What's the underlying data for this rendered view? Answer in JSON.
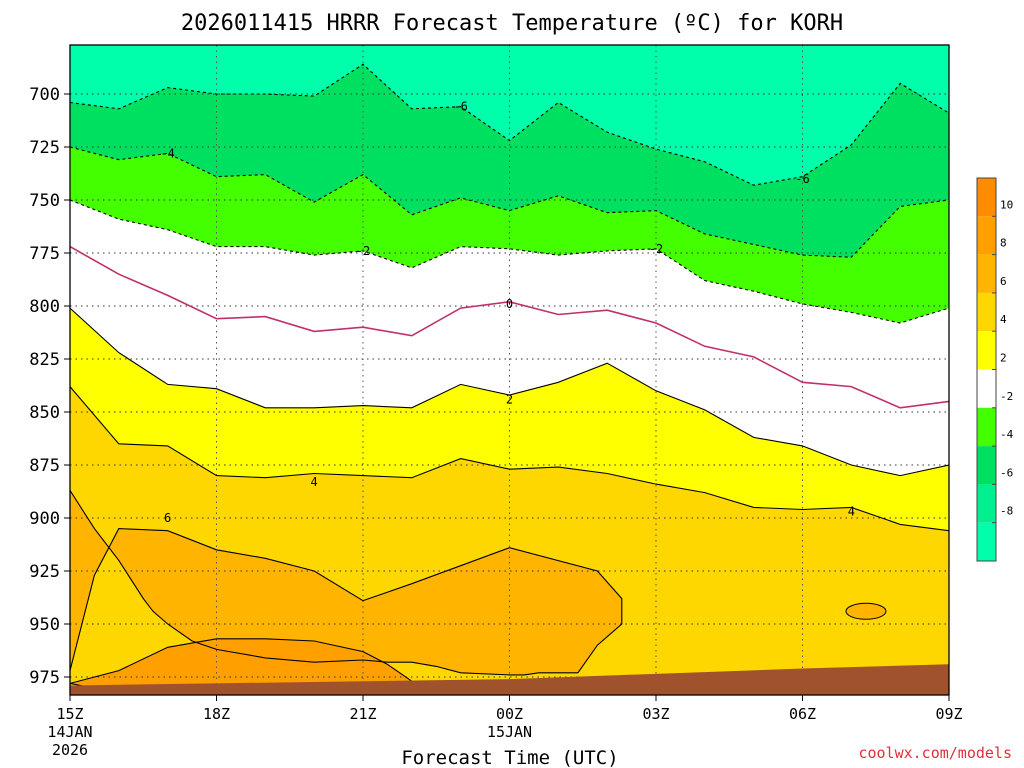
{
  "chart_data": {
    "type": "heatmap",
    "title": "2026011415 HRRR Forecast Temperature (ºC) for KORH",
    "xlabel": "Forecast Time (UTC)",
    "ylabel": "",
    "credit": "coolwx.com/models",
    "y_axis": {
      "ticks": [
        "700",
        "725",
        "750",
        "775",
        "800",
        "825",
        "850",
        "875",
        "900",
        "925",
        "950",
        "975"
      ],
      "values": [
        700,
        725,
        750,
        775,
        800,
        825,
        850,
        875,
        900,
        925,
        950,
        975
      ],
      "range": [
        676,
        985
      ],
      "inverted": true
    },
    "x_axis": {
      "ticks": [
        {
          "hour": 0,
          "label": "15Z",
          "sub1": "14JAN",
          "sub2": "2026"
        },
        {
          "hour": 3,
          "label": "18Z",
          "sub1": "",
          "sub2": ""
        },
        {
          "hour": 6,
          "label": "21Z",
          "sub1": "",
          "sub2": ""
        },
        {
          "hour": 9,
          "label": "00Z",
          "sub1": "15JAN",
          "sub2": ""
        },
        {
          "hour": 12,
          "label": "03Z",
          "sub1": "",
          "sub2": ""
        },
        {
          "hour": 15,
          "label": "06Z",
          "sub1": "",
          "sub2": ""
        },
        {
          "hour": 18,
          "label": "09Z",
          "sub1": "",
          "sub2": ""
        }
      ],
      "range": [
        0,
        18
      ]
    },
    "grid": true,
    "legend": {
      "placement": "right",
      "levels": [
        {
          "label": "10",
          "color": "#ff8c00"
        },
        {
          "label": "8",
          "color": "#ffa000"
        },
        {
          "label": "6",
          "color": "#ffb400"
        },
        {
          "label": "4",
          "color": "#ffd700"
        },
        {
          "label": "2",
          "color": "#ffff00"
        },
        {
          "label": "-2",
          "color": "#ffffff"
        },
        {
          "label": "-4",
          "color": "#44ff00"
        },
        {
          "label": "-6",
          "color": "#00e060"
        },
        {
          "label": "-8",
          "color": "#00f090"
        },
        {
          "label": "",
          "color": "#00ffaa"
        }
      ],
      "label_values": [
        "10",
        "8",
        "6",
        "4",
        "2",
        "-2",
        "-4",
        "-6",
        "-8"
      ]
    },
    "contours": [
      {
        "label": "-6",
        "hours": [
          0,
          1,
          2,
          3,
          4,
          5,
          6,
          7,
          8,
          9,
          10,
          11,
          12,
          13,
          14,
          15,
          16,
          17,
          18
        ],
        "pressure": [
          704,
          707,
          697,
          700,
          700,
          701,
          686,
          707,
          706,
          722,
          704,
          718,
          726,
          732,
          743,
          739,
          724,
          695,
          709
        ]
      },
      {
        "label": "-4",
        "hours": [
          0,
          1,
          2,
          3,
          4,
          5,
          6,
          7,
          8,
          9,
          10,
          11,
          12,
          13,
          14,
          15,
          16,
          17,
          18
        ],
        "pressure": [
          725,
          731,
          728,
          739,
          738,
          751,
          738,
          757,
          749,
          755,
          748,
          756,
          755,
          766,
          771,
          776,
          777,
          753,
          750
        ]
      },
      {
        "label": "-2",
        "hours": [
          0,
          1,
          2,
          3,
          4,
          5,
          6,
          7,
          8,
          9,
          10,
          11,
          12,
          13,
          14,
          15,
          16,
          17,
          18
        ],
        "pressure": [
          750,
          759,
          764,
          772,
          772,
          776,
          774,
          782,
          772,
          773,
          776,
          774,
          773,
          788,
          793,
          799,
          803,
          808,
          801
        ]
      },
      {
        "label": "0",
        "hours": [
          0,
          1,
          2,
          3,
          4,
          5,
          6,
          7,
          8,
          9,
          10,
          11,
          12,
          13,
          14,
          15,
          16,
          17,
          18
        ],
        "pressure": [
          772,
          785,
          795,
          806,
          805,
          812,
          810,
          814,
          801,
          798,
          804,
          802,
          808,
          819,
          824,
          836,
          838,
          848,
          845
        ]
      },
      {
        "label": "2",
        "hours": [
          0,
          1,
          2,
          3,
          4,
          5,
          6,
          7,
          8,
          9,
          10,
          11,
          12,
          13,
          14,
          15,
          16,
          17,
          18
        ],
        "pressure": [
          801,
          822,
          837,
          839,
          848,
          848,
          847,
          848,
          837,
          842,
          836,
          827,
          840,
          849,
          862,
          866,
          875,
          880,
          875
        ]
      },
      {
        "label": "4",
        "hours": [
          0,
          1,
          2,
          3,
          4,
          5,
          6,
          7,
          8,
          9,
          10,
          11,
          12,
          13,
          14,
          15,
          16,
          17,
          18
        ],
        "pressure": [
          838,
          865,
          866,
          880,
          881,
          879,
          880,
          881,
          872,
          877,
          876,
          879,
          884,
          888,
          895,
          896,
          895,
          903,
          906
        ]
      },
      {
        "label": "6",
        "hours": [
          0,
          0.5,
          1,
          1.5,
          1.7,
          2,
          2.5,
          3,
          4,
          5,
          6,
          6.5,
          7,
          7.5,
          8,
          9,
          9.3,
          9.6,
          10.4,
          10.8,
          11.3,
          11.3,
          10.8,
          9,
          7,
          6,
          5,
          4,
          3,
          2,
          1,
          0.5,
          0
        ],
        "pressure": [
          887,
          905,
          920,
          938,
          944,
          950,
          958,
          962,
          966,
          968,
          967,
          968,
          968,
          970,
          973,
          974,
          974,
          973,
          973,
          960,
          950,
          938,
          925,
          914,
          931,
          939,
          925,
          919,
          915,
          906,
          905,
          927,
          972
        ],
        "closed": false
      },
      {
        "label": "8",
        "hours": [
          0,
          1,
          2,
          3,
          4,
          5,
          6,
          6.5,
          7,
          5,
          4,
          3,
          2,
          1.5
        ],
        "pressure": [
          978,
          972,
          961,
          957,
          957,
          958,
          963,
          969,
          977,
          985,
          985,
          985,
          985,
          985
        ],
        "closed": false
      }
    ],
    "terrain_color": "#a0522d"
  }
}
